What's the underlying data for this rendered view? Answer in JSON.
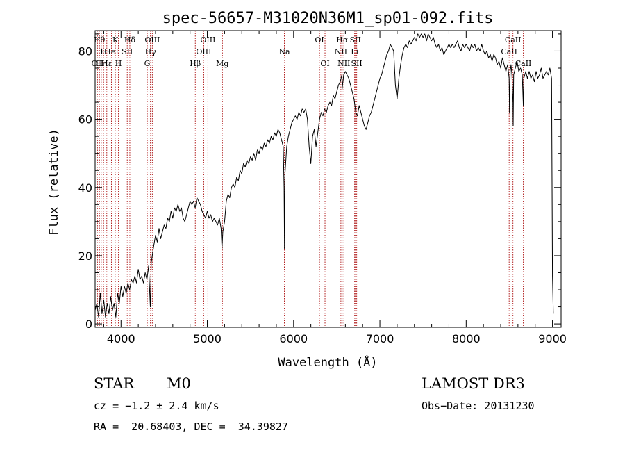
{
  "chart_data": {
    "type": "line",
    "title": "spec-56657-M31020N36M1_sp01-092.fits",
    "xlabel": "Wavelength (Å)",
    "ylabel": "Flux (relative)",
    "xlim": [
      3700,
      9100
    ],
    "ylim": [
      -1,
      86
    ],
    "xticks": [
      4000,
      5000,
      6000,
      7000,
      8000,
      9000
    ],
    "yticks": [
      0,
      20,
      40,
      60,
      80
    ],
    "series": [
      {
        "name": "spectrum",
        "points": [
          [
            3700,
            4
          ],
          [
            3720,
            6
          ],
          [
            3740,
            2
          ],
          [
            3760,
            9
          ],
          [
            3780,
            3
          ],
          [
            3800,
            7
          ],
          [
            3820,
            2
          ],
          [
            3840,
            6
          ],
          [
            3860,
            3
          ],
          [
            3880,
            8
          ],
          [
            3900,
            4
          ],
          [
            3920,
            6
          ],
          [
            3940,
            2
          ],
          [
            3960,
            9
          ],
          [
            3980,
            6
          ],
          [
            4000,
            11
          ],
          [
            4020,
            8
          ],
          [
            4040,
            11
          ],
          [
            4060,
            9
          ],
          [
            4080,
            12
          ],
          [
            4100,
            10
          ],
          [
            4120,
            13
          ],
          [
            4140,
            12
          ],
          [
            4160,
            14
          ],
          [
            4180,
            12
          ],
          [
            4200,
            16
          ],
          [
            4220,
            13
          ],
          [
            4240,
            14
          ],
          [
            4260,
            12
          ],
          [
            4280,
            15
          ],
          [
            4300,
            13
          ],
          [
            4320,
            17
          ],
          [
            4340,
            5
          ],
          [
            4350,
            18
          ],
          [
            4380,
            23
          ],
          [
            4400,
            26
          ],
          [
            4420,
            24
          ],
          [
            4440,
            28
          ],
          [
            4460,
            25
          ],
          [
            4480,
            27
          ],
          [
            4500,
            29
          ],
          [
            4520,
            28
          ],
          [
            4540,
            31
          ],
          [
            4560,
            30
          ],
          [
            4580,
            33
          ],
          [
            4600,
            31
          ],
          [
            4620,
            34
          ],
          [
            4640,
            33
          ],
          [
            4660,
            35
          ],
          [
            4680,
            33
          ],
          [
            4700,
            34
          ],
          [
            4720,
            31
          ],
          [
            4740,
            30
          ],
          [
            4760,
            32
          ],
          [
            4780,
            34
          ],
          [
            4800,
            36
          ],
          [
            4820,
            35
          ],
          [
            4840,
            36
          ],
          [
            4860,
            34
          ],
          [
            4880,
            37
          ],
          [
            4900,
            36
          ],
          [
            4920,
            35
          ],
          [
            4940,
            33
          ],
          [
            4960,
            32
          ],
          [
            4980,
            31
          ],
          [
            5000,
            33
          ],
          [
            5020,
            31
          ],
          [
            5040,
            32
          ],
          [
            5060,
            30
          ],
          [
            5080,
            31
          ],
          [
            5100,
            30
          ],
          [
            5120,
            29
          ],
          [
            5140,
            31
          ],
          [
            5160,
            28
          ],
          [
            5170,
            22
          ],
          [
            5180,
            27
          ],
          [
            5200,
            30
          ],
          [
            5220,
            36
          ],
          [
            5240,
            38
          ],
          [
            5260,
            37
          ],
          [
            5280,
            40
          ],
          [
            5300,
            41
          ],
          [
            5320,
            40
          ],
          [
            5340,
            43
          ],
          [
            5360,
            42
          ],
          [
            5380,
            45
          ],
          [
            5400,
            44
          ],
          [
            5420,
            47
          ],
          [
            5440,
            46
          ],
          [
            5460,
            48
          ],
          [
            5480,
            47
          ],
          [
            5500,
            49
          ],
          [
            5520,
            48
          ],
          [
            5540,
            50
          ],
          [
            5560,
            48
          ],
          [
            5580,
            51
          ],
          [
            5600,
            50
          ],
          [
            5620,
            52
          ],
          [
            5640,
            51
          ],
          [
            5660,
            53
          ],
          [
            5680,
            52
          ],
          [
            5700,
            54
          ],
          [
            5720,
            53
          ],
          [
            5740,
            55
          ],
          [
            5760,
            54
          ],
          [
            5780,
            56
          ],
          [
            5800,
            55
          ],
          [
            5820,
            57
          ],
          [
            5840,
            56
          ],
          [
            5860,
            54
          ],
          [
            5880,
            52
          ],
          [
            5890,
            40
          ],
          [
            5895,
            22
          ],
          [
            5900,
            44
          ],
          [
            5920,
            52
          ],
          [
            5940,
            55
          ],
          [
            5960,
            57
          ],
          [
            5980,
            59
          ],
          [
            6000,
            60
          ],
          [
            6020,
            61
          ],
          [
            6040,
            60
          ],
          [
            6060,
            62
          ],
          [
            6080,
            61
          ],
          [
            6100,
            63
          ],
          [
            6120,
            62
          ],
          [
            6140,
            63
          ],
          [
            6160,
            60
          ],
          [
            6180,
            52
          ],
          [
            6200,
            47
          ],
          [
            6220,
            55
          ],
          [
            6240,
            57
          ],
          [
            6260,
            52
          ],
          [
            6280,
            56
          ],
          [
            6300,
            60
          ],
          [
            6320,
            62
          ],
          [
            6340,
            61
          ],
          [
            6360,
            63
          ],
          [
            6380,
            62
          ],
          [
            6400,
            64
          ],
          [
            6420,
            65
          ],
          [
            6440,
            64
          ],
          [
            6460,
            67
          ],
          [
            6480,
            66
          ],
          [
            6500,
            68
          ],
          [
            6520,
            70
          ],
          [
            6540,
            71
          ],
          [
            6560,
            73
          ],
          [
            6563,
            69
          ],
          [
            6580,
            73
          ],
          [
            6600,
            74
          ],
          [
            6620,
            73
          ],
          [
            6640,
            72
          ],
          [
            6660,
            70
          ],
          [
            6680,
            68
          ],
          [
            6700,
            66
          ],
          [
            6720,
            62
          ],
          [
            6740,
            61
          ],
          [
            6760,
            64
          ],
          [
            6780,
            62
          ],
          [
            6800,
            60
          ],
          [
            6820,
            58
          ],
          [
            6840,
            57
          ],
          [
            6860,
            59
          ],
          [
            6880,
            61
          ],
          [
            6900,
            62
          ],
          [
            6920,
            64
          ],
          [
            6940,
            66
          ],
          [
            6960,
            68
          ],
          [
            6980,
            70
          ],
          [
            7000,
            72
          ],
          [
            7020,
            73
          ],
          [
            7040,
            75
          ],
          [
            7060,
            77
          ],
          [
            7080,
            79
          ],
          [
            7100,
            80
          ],
          [
            7120,
            82
          ],
          [
            7140,
            81
          ],
          [
            7160,
            80
          ],
          [
            7180,
            70
          ],
          [
            7200,
            66
          ],
          [
            7220,
            72
          ],
          [
            7240,
            76
          ],
          [
            7260,
            79
          ],
          [
            7280,
            81
          ],
          [
            7300,
            82
          ],
          [
            7320,
            81
          ],
          [
            7340,
            83
          ],
          [
            7360,
            82
          ],
          [
            7380,
            83
          ],
          [
            7400,
            84
          ],
          [
            7420,
            83
          ],
          [
            7440,
            85
          ],
          [
            7460,
            84
          ],
          [
            7480,
            85
          ],
          [
            7500,
            84
          ],
          [
            7520,
            85
          ],
          [
            7540,
            83
          ],
          [
            7560,
            85
          ],
          [
            7580,
            84
          ],
          [
            7600,
            83
          ],
          [
            7620,
            84
          ],
          [
            7640,
            82
          ],
          [
            7660,
            81
          ],
          [
            7680,
            82
          ],
          [
            7700,
            80
          ],
          [
            7720,
            81
          ],
          [
            7740,
            79
          ],
          [
            7760,
            80
          ],
          [
            7780,
            81
          ],
          [
            7800,
            82
          ],
          [
            7820,
            81
          ],
          [
            7840,
            82
          ],
          [
            7860,
            81
          ],
          [
            7880,
            82
          ],
          [
            7900,
            83
          ],
          [
            7920,
            81
          ],
          [
            7940,
            80
          ],
          [
            7960,
            82
          ],
          [
            7980,
            81
          ],
          [
            8000,
            82
          ],
          [
            8020,
            81
          ],
          [
            8040,
            80
          ],
          [
            8060,
            82
          ],
          [
            8080,
            81
          ],
          [
            8100,
            82
          ],
          [
            8120,
            80
          ],
          [
            8140,
            81
          ],
          [
            8160,
            80
          ],
          [
            8180,
            82
          ],
          [
            8200,
            80
          ],
          [
            8220,
            79
          ],
          [
            8240,
            80
          ],
          [
            8260,
            78
          ],
          [
            8280,
            79
          ],
          [
            8300,
            77
          ],
          [
            8320,
            79
          ],
          [
            8340,
            78
          ],
          [
            8360,
            76
          ],
          [
            8380,
            77
          ],
          [
            8400,
            75
          ],
          [
            8420,
            78
          ],
          [
            8440,
            76
          ],
          [
            8460,
            74
          ],
          [
            8480,
            76
          ],
          [
            8498,
            72
          ],
          [
            8502,
            62
          ],
          [
            8510,
            74
          ],
          [
            8520,
            76
          ],
          [
            8530,
            73
          ],
          [
            8542,
            65
          ],
          [
            8545,
            58
          ],
          [
            8550,
            73
          ],
          [
            8570,
            75
          ],
          [
            8590,
            77
          ],
          [
            8610,
            74
          ],
          [
            8630,
            75
          ],
          [
            8650,
            73
          ],
          [
            8662,
            64
          ],
          [
            8668,
            72
          ],
          [
            8690,
            74
          ],
          [
            8710,
            72
          ],
          [
            8730,
            74
          ],
          [
            8750,
            72
          ],
          [
            8770,
            73
          ],
          [
            8790,
            71
          ],
          [
            8810,
            74
          ],
          [
            8830,
            72
          ],
          [
            8850,
            73
          ],
          [
            8870,
            75
          ],
          [
            8890,
            72
          ],
          [
            8910,
            73
          ],
          [
            8930,
            74
          ],
          [
            8950,
            73
          ],
          [
            8970,
            75
          ],
          [
            8990,
            72
          ],
          [
            9000,
            14
          ],
          [
            9010,
            3
          ]
        ]
      }
    ],
    "lines": [
      {
        "x": 3727,
        "label": "OII",
        "row": 3
      },
      {
        "x": 3750,
        "label": "Hθ",
        "row": 1
      },
      {
        "x": 3771,
        "label": "Hη",
        "row": 3
      },
      {
        "x": 3798,
        "label": "H",
        "row": 2
      },
      {
        "x": 3835,
        "label": "Hε",
        "row": 3
      },
      {
        "x": 3889,
        "label": "HeI",
        "row": 2
      },
      {
        "x": 3934,
        "label": "K",
        "row": 1
      },
      {
        "x": 3970,
        "label": "H",
        "row": 3
      },
      {
        "x": 4072,
        "label": "SII",
        "row": 2
      },
      {
        "x": 4102,
        "label": "Hδ",
        "row": 1
      },
      {
        "x": 4304,
        "label": "G",
        "row": 3
      },
      {
        "x": 4341,
        "label": "Hγ",
        "row": 2
      },
      {
        "x": 4363,
        "label": "OIII",
        "row": 1
      },
      {
        "x": 4861,
        "label": "Hβ",
        "row": 3
      },
      {
        "x": 4959,
        "label": "OIII",
        "row": 2
      },
      {
        "x": 5007,
        "label": "OIII",
        "row": 1
      },
      {
        "x": 5175,
        "label": "Mg",
        "row": 3
      },
      {
        "x": 5893,
        "label": "Na",
        "row": 2
      },
      {
        "x": 6300,
        "label": "OI",
        "row": 1
      },
      {
        "x": 6364,
        "label": "OI",
        "row": 3
      },
      {
        "x": 6548,
        "label": "NII",
        "row": 2
      },
      {
        "x": 6563,
        "label": "Hα",
        "row": 1
      },
      {
        "x": 6583,
        "label": "NII",
        "row": 3
      },
      {
        "x": 6707,
        "label": "Li",
        "row": 2
      },
      {
        "x": 6716,
        "label": "SII",
        "row": 1
      },
      {
        "x": 6731,
        "label": "SII",
        "row": 3
      },
      {
        "x": 8498,
        "label": "CaII",
        "row": 2
      },
      {
        "x": 8542,
        "label": "CaII",
        "row": 1
      },
      {
        "x": 8662,
        "label": "CaII",
        "row": 3
      }
    ]
  },
  "info": {
    "object_class": "STAR",
    "subclass": "M0",
    "survey": "LAMOST DR3",
    "redshift": "cz = −1.2 ± 2.4 km/s",
    "obs_date": "Obs−Date: 20131230",
    "coords": "RA =  20.68403, DEC =  34.39827"
  }
}
